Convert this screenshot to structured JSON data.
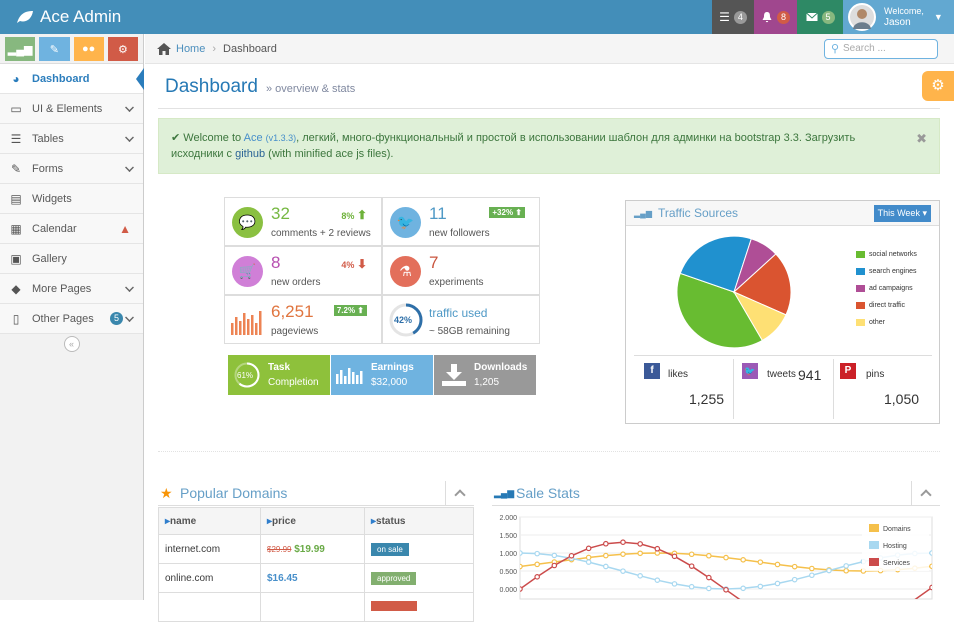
{
  "brand": {
    "title": "Ace Admin"
  },
  "nav": {
    "tasks_count": "4",
    "notifications_count": "8",
    "messages_count": "5",
    "welcome": "Welcome,",
    "user": "Jason"
  },
  "colors": {
    "navbar": "#438eb9",
    "tasks": "#555555",
    "notifications": "#a0478e",
    "messages": "#2e8965",
    "user": "#62a8d1"
  },
  "sidebar": {
    "items": [
      {
        "label": "Dashboard",
        "icon": "tachometer-icon"
      },
      {
        "label": "UI & Elements",
        "icon": "desktop-icon"
      },
      {
        "label": "Tables",
        "icon": "list-icon"
      },
      {
        "label": "Forms",
        "icon": "edit-icon"
      },
      {
        "label": "Widgets",
        "icon": "list-alt-icon"
      },
      {
        "label": "Calendar",
        "icon": "calendar-icon"
      },
      {
        "label": "Gallery",
        "icon": "picture-icon"
      },
      {
        "label": "More Pages",
        "icon": "tag-icon"
      },
      {
        "label": "Other Pages",
        "icon": "file-icon",
        "badge": "5"
      }
    ]
  },
  "breadcrumb": {
    "home": "Home",
    "current": "Dashboard"
  },
  "search": {
    "placeholder": "Search ..."
  },
  "page": {
    "title": "Dashboard",
    "subtitle": "» overview & stats"
  },
  "alert": {
    "welcome": "Welcome to",
    "brand": "Ace",
    "version": "(v1.3.3)",
    "text1": ", легкий, много-функциональный и простой в использовании шаблон для админки на bootstrap 3.3. Загрузить исходники с",
    "link": "github",
    "text2": "(with minified ace js files)."
  },
  "infoboxes": [
    {
      "num": "32",
      "text": "comments + 2 reviews",
      "stat": "8%"
    },
    {
      "num": "11",
      "text": "new followers",
      "badge": "+32%"
    },
    {
      "num": "8",
      "text": "new orders",
      "stat": "4%"
    },
    {
      "num": "7",
      "text": "experiments"
    },
    {
      "num": "6,251",
      "text": "pageviews",
      "badge": "7.2%"
    },
    {
      "num": "traffic used",
      "text": "~ 58GB remaining",
      "pct": "42%"
    }
  ],
  "tiles": [
    {
      "title": "Task",
      "sub": "Completion",
      "pct": "61%"
    },
    {
      "title": "Earnings",
      "sub": "$32,000"
    },
    {
      "title": "Downloads",
      "sub": "1,205"
    }
  ],
  "traffic": {
    "title": "Traffic Sources",
    "range": "This Week",
    "likes_label": "likes",
    "likes": "1,255",
    "tweets_label": "tweets",
    "tweets": "941",
    "pins_label": "pins",
    "pins": "1,050"
  },
  "chart_data": [
    {
      "type": "pie",
      "legend_position": "right",
      "labels": [
        "social networks",
        "search engines",
        "ad campaigns",
        "direct traffic",
        "other"
      ],
      "values": [
        38.7,
        24.5,
        8.2,
        18.6,
        10.0
      ],
      "colors": [
        "#68bc31",
        "#2091cf",
        "#af4e96",
        "#da5430",
        "#fee074"
      ]
    },
    {
      "type": "line",
      "legend_position": "top-right",
      "ylim": [
        0,
        2.0
      ],
      "yticks": [
        "2.000",
        "1.500",
        "1.000",
        "0.500",
        "0.000"
      ],
      "series": [
        {
          "name": "Domains",
          "color": "#f5c04b"
        },
        {
          "name": "Hosting",
          "color": "#a8d8f0"
        },
        {
          "name": "Services",
          "color": "#cb4b4b"
        }
      ]
    }
  ],
  "domains": {
    "title": "Popular Domains",
    "headers": [
      "name",
      "price",
      "status"
    ],
    "rows": [
      {
        "name": "internet.com",
        "old_price": "$29.99",
        "price": "$19.99",
        "status": "on sale"
      },
      {
        "name": "online.com",
        "price": "$16.45",
        "status": "approved"
      }
    ]
  },
  "sales": {
    "title": "Sale Stats"
  }
}
